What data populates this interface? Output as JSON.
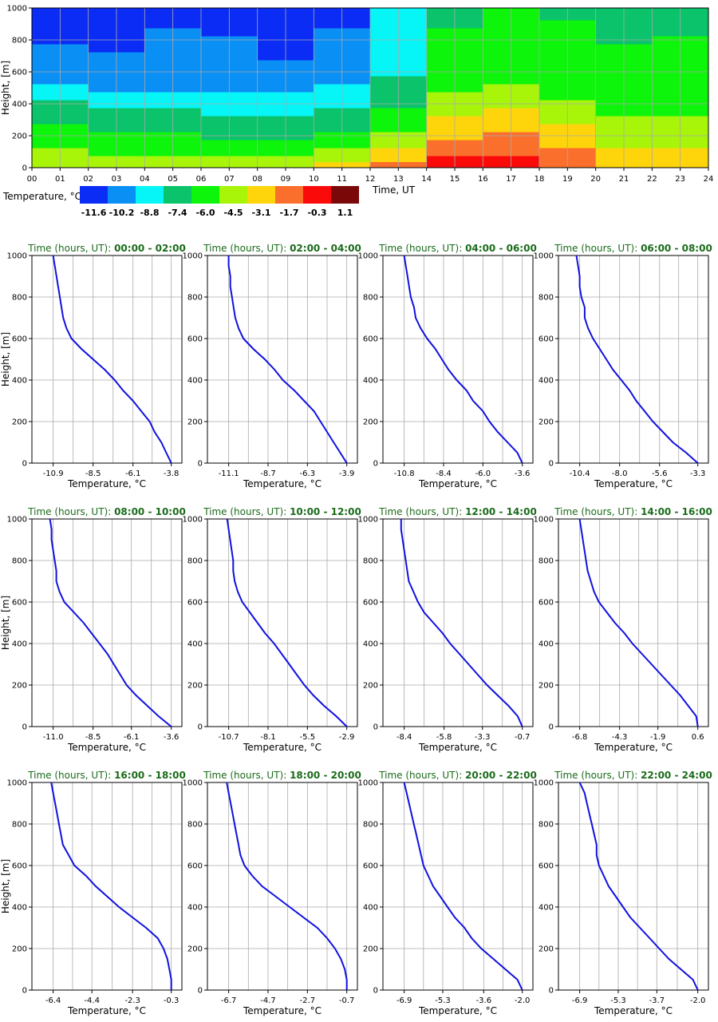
{
  "colors": {
    "bins": [
      "#0b2cf5",
      "#0a8ff5",
      "#06f5f7",
      "#0ac36a",
      "#0cf50a",
      "#a8f50a",
      "#fdd50a",
      "#fb6f2c",
      "#fb0a0a",
      "#7a0808"
    ],
    "profile_line": "#1010e0",
    "title_green": "#1a6b1a"
  },
  "heatmap": {
    "ylabel": "Height, [m]",
    "xlabel": "Time, UT",
    "xlim": [
      0,
      24
    ],
    "ylim": [
      0,
      1000
    ],
    "x_ticks": [
      "00",
      "01",
      "02",
      "03",
      "04",
      "05",
      "06",
      "07",
      "08",
      "09",
      "10",
      "11",
      "12",
      "13",
      "14",
      "15",
      "16",
      "17",
      "18",
      "19",
      "20",
      "21",
      "22",
      "23",
      "24"
    ],
    "y_ticks": [
      "0",
      "200",
      "400",
      "600",
      "800",
      "1000"
    ],
    "colorbar_label": "Temperature, °C",
    "colorbar_ticks": [
      "-11.6",
      "-10.2",
      "-8.8",
      "-7.4",
      "-6.0",
      "-4.5",
      "-3.1",
      "-1.7",
      "-0.3",
      "1.1"
    ],
    "levels_m": [
      25,
      50,
      100,
      150,
      200,
      250,
      300,
      350,
      400,
      450,
      500,
      550,
      600,
      650,
      700,
      750,
      800,
      850,
      900,
      950,
      1000
    ],
    "time_ut": [
      1,
      3,
      5,
      7,
      9,
      11,
      13,
      15,
      17,
      19,
      21,
      23
    ]
  },
  "chart_data": {
    "type": "line",
    "y_label": "Height, [m]",
    "x_label": "Temperature, °C",
    "ylim": [
      0,
      1000
    ],
    "y_ticks": [
      "0",
      "200",
      "400",
      "600",
      "800",
      "1000"
    ],
    "heights": [
      0,
      50,
      100,
      150,
      200,
      250,
      300,
      350,
      400,
      450,
      500,
      550,
      600,
      650,
      700,
      750,
      800,
      850,
      900,
      950,
      1000
    ],
    "panels": [
      {
        "title_prefix": "Time (hours, UT): ",
        "title_range": "00:00 - 02:00",
        "x_ticks": [
          "-10.9",
          "-8.5",
          "-6.1",
          "-3.8"
        ],
        "temps": [
          -3.8,
          -4.1,
          -4.4,
          -4.8,
          -5.1,
          -5.6,
          -6.1,
          -6.7,
          -7.2,
          -7.8,
          -8.5,
          -9.2,
          -9.8,
          -10.1,
          -10.3,
          -10.4,
          -10.5,
          -10.6,
          -10.7,
          -10.8,
          -10.9
        ]
      },
      {
        "title_prefix": "Time (hours, UT): ",
        "title_range": "02:00 - 04:00",
        "x_ticks": [
          "-11.1",
          "-8.7",
          "-6.3",
          "-3.9"
        ],
        "temps": [
          -3.9,
          -4.3,
          -4.7,
          -5.1,
          -5.5,
          -5.9,
          -6.5,
          -7.1,
          -7.8,
          -8.3,
          -8.9,
          -9.6,
          -10.2,
          -10.5,
          -10.7,
          -10.8,
          -10.9,
          -11.0,
          -11.0,
          -11.1,
          -11.1
        ]
      },
      {
        "title_prefix": "Time (hours, UT): ",
        "title_range": "04:00 - 06:00",
        "x_ticks": [
          "-10.8",
          "-8.4",
          "-6.0",
          "-3.6"
        ],
        "temps": [
          -3.6,
          -3.9,
          -4.5,
          -5.1,
          -5.6,
          -6.0,
          -6.6,
          -7.0,
          -7.6,
          -8.1,
          -8.5,
          -8.9,
          -9.4,
          -9.8,
          -10.1,
          -10.2,
          -10.4,
          -10.5,
          -10.6,
          -10.7,
          -10.8
        ]
      },
      {
        "title_prefix": "Time (hours, UT): ",
        "title_range": "06:00 - 08:00",
        "x_ticks": [
          "-10.4",
          "-8.0",
          "-5.6",
          "-3.3"
        ],
        "temps": [
          -3.3,
          -4.0,
          -4.8,
          -5.4,
          -6.0,
          -6.5,
          -7.0,
          -7.4,
          -7.9,
          -8.4,
          -8.8,
          -9.2,
          -9.6,
          -9.9,
          -10.1,
          -10.1,
          -10.3,
          -10.4,
          -10.4,
          -10.5,
          -10.6
        ]
      },
      {
        "title_prefix": "Time (hours, UT): ",
        "title_range": "08:00 - 10:00",
        "x_ticks": [
          "-11.0",
          "-8.5",
          "-6.1",
          "-3.6"
        ],
        "temps": [
          -3.6,
          -4.4,
          -5.1,
          -5.8,
          -6.4,
          -6.8,
          -7.2,
          -7.6,
          -8.1,
          -8.6,
          -9.1,
          -9.7,
          -10.3,
          -10.6,
          -10.8,
          -10.8,
          -10.9,
          -11.0,
          -11.1,
          -11.1,
          -11.2
        ]
      },
      {
        "title_prefix": "Time (hours, UT): ",
        "title_range": "10:00 - 12:00",
        "x_ticks": [
          "-10.7",
          "-8.1",
          "-5.5",
          "-2.9"
        ],
        "temps": [
          -2.9,
          -3.6,
          -4.4,
          -5.1,
          -5.7,
          -6.2,
          -6.7,
          -7.2,
          -7.7,
          -8.3,
          -8.8,
          -9.3,
          -9.8,
          -10.1,
          -10.3,
          -10.4,
          -10.4,
          -10.5,
          -10.6,
          -10.7,
          -10.8
        ]
      },
      {
        "title_prefix": "Time (hours, UT): ",
        "title_range": "12:00 - 14:00",
        "x_ticks": [
          "-8.4",
          "-5.8",
          "-3.3",
          "-0.7"
        ],
        "temps": [
          -0.7,
          -1.0,
          -1.6,
          -2.3,
          -3.0,
          -3.6,
          -4.2,
          -4.8,
          -5.4,
          -5.9,
          -6.5,
          -7.1,
          -7.5,
          -7.8,
          -8.1,
          -8.2,
          -8.3,
          -8.4,
          -8.5,
          -8.6,
          -8.6
        ]
      },
      {
        "title_prefix": "Time (hours, UT): ",
        "title_range": "14:00 - 16:00",
        "x_ticks": [
          "-6.8",
          "-4.3",
          "-1.9",
          "0.6"
        ],
        "temps": [
          0.6,
          0.5,
          0.0,
          -0.5,
          -1.1,
          -1.7,
          -2.3,
          -2.9,
          -3.5,
          -4.0,
          -4.6,
          -5.1,
          -5.6,
          -5.9,
          -6.1,
          -6.3,
          -6.4,
          -6.5,
          -6.6,
          -6.7,
          -6.8
        ]
      },
      {
        "title_prefix": "Time (hours, UT): ",
        "title_range": "16:00 - 18:00",
        "x_ticks": [
          "-6.4",
          "-4.4",
          "-2.3",
          "-0.3"
        ],
        "temps": [
          -0.3,
          -0.3,
          -0.4,
          -0.5,
          -0.7,
          -1.0,
          -1.6,
          -2.3,
          -3.0,
          -3.6,
          -4.2,
          -4.7,
          -5.3,
          -5.6,
          -5.9,
          -6.0,
          -6.1,
          -6.2,
          -6.3,
          -6.4,
          -6.5
        ]
      },
      {
        "title_prefix": "Time (hours, UT): ",
        "title_range": "18:00 - 20:00",
        "x_ticks": [
          "-6.7",
          "-4.7",
          "-2.7",
          "-0.7"
        ],
        "temps": [
          -0.7,
          -0.7,
          -0.8,
          -1.0,
          -1.3,
          -1.7,
          -2.2,
          -2.9,
          -3.6,
          -4.3,
          -5.0,
          -5.5,
          -5.9,
          -6.1,
          -6.2,
          -6.3,
          -6.4,
          -6.5,
          -6.6,
          -6.7,
          -6.8
        ]
      },
      {
        "title_prefix": "Time (hours, UT): ",
        "title_range": "20:00 - 22:00",
        "x_ticks": [
          "-6.9",
          "-5.3",
          "-3.6",
          "-2.0"
        ],
        "temps": [
          -2.0,
          -2.2,
          -2.7,
          -3.2,
          -3.7,
          -4.1,
          -4.4,
          -4.8,
          -5.1,
          -5.4,
          -5.7,
          -5.9,
          -6.1,
          -6.2,
          -6.3,
          -6.4,
          -6.5,
          -6.6,
          -6.7,
          -6.8,
          -6.9
        ]
      },
      {
        "title_prefix": "Time (hours, UT): ",
        "title_range": "22:00 - 24:00",
        "x_ticks": [
          "-6.9",
          "-5.3",
          "-3.7",
          "-2.0"
        ],
        "temps": [
          -2.0,
          -2.2,
          -2.7,
          -3.2,
          -3.6,
          -4.0,
          -4.4,
          -4.8,
          -5.1,
          -5.4,
          -5.7,
          -5.9,
          -6.1,
          -6.2,
          -6.2,
          -6.3,
          -6.4,
          -6.5,
          -6.6,
          -6.7,
          -6.9
        ]
      }
    ],
    "heatmap_temps": [
      [
        -4.4,
        -4.6,
        -4.4,
        -4.3,
        -4.1,
        -3.8,
        -1.7,
        -0.4,
        -0.4,
        -1.2,
        -2.5,
        -3.1
      ],
      [
        -4.8,
        -5.0,
        -4.8,
        -5.1,
        -4.6,
        -4.2,
        -2.6,
        -0.9,
        -0.6,
        -1.4,
        -3.0,
        -3.3
      ],
      [
        -5.1,
        -5.4,
        -5.4,
        -5.8,
        -5.5,
        -5.0,
        -3.5,
        -1.5,
        -1.2,
        -2.0,
        -3.5,
        -3.7
      ],
      [
        -5.5,
        -5.8,
        -6.0,
        -6.4,
        -6.2,
        -5.6,
        -4.2,
        -2.1,
        -1.7,
        -2.6,
        -4.0,
        -4.1
      ],
      [
        -5.9,
        -6.2,
        -6.5,
        -7.0,
        -6.8,
        -6.2,
        -4.8,
        -2.7,
        -2.2,
        -3.1,
        -4.4,
        -4.4
      ],
      [
        -6.4,
        -6.8,
        -7.1,
        -7.5,
        -7.3,
        -6.8,
        -5.3,
        -3.2,
        -2.6,
        -3.6,
        -4.8,
        -4.8
      ],
      [
        -7.0,
        -7.4,
        -7.6,
        -8.0,
        -7.8,
        -7.3,
        -5.8,
        -3.6,
        -3.1,
        -4.0,
        -5.1,
        -5.1
      ],
      [
        -7.5,
        -8.0,
        -8.1,
        -8.5,
        -8.3,
        -7.9,
        -6.3,
        -4.1,
        -3.6,
        -4.4,
        -5.3,
        -5.4
      ],
      [
        -8.1,
        -8.6,
        -8.6,
        -9.0,
        -8.8,
        -8.4,
        -6.8,
        -4.6,
        -4.1,
        -4.9,
        -5.6,
        -5.6
      ],
      [
        -8.7,
        -9.1,
        -9.1,
        -9.4,
        -9.3,
        -8.9,
        -7.2,
        -5.0,
        -4.6,
        -5.3,
        -5.8,
        -5.8
      ],
      [
        -9.4,
        -9.6,
        -9.6,
        -9.7,
        -9.7,
        -9.3,
        -7.6,
        -5.4,
        -5.0,
        -5.6,
        -6.0,
        -6.0
      ],
      [
        -10.0,
        -10.1,
        -10.0,
        -10.0,
        -10.1,
        -9.7,
        -7.9,
        -5.8,
        -5.4,
        -5.9,
        -6.2,
        -6.2
      ],
      [
        -10.3,
        -10.4,
        -10.3,
        -10.3,
        -10.5,
        -10.0,
        -8.2,
        -6.0,
        -5.7,
        -6.1,
        -6.4,
        -6.3
      ],
      [
        -10.5,
        -10.6,
        -10.5,
        -10.5,
        -10.7,
        -10.3,
        -8.4,
        -6.2,
        -5.9,
        -6.2,
        -6.5,
        -6.4
      ],
      [
        -10.7,
        -10.8,
        -10.6,
        -10.6,
        -10.9,
        -10.5,
        -8.6,
        -6.4,
        -6.1,
        -6.3,
        -6.6,
        -6.5
      ],
      [
        -10.8,
        -10.9,
        -10.7,
        -10.7,
        -11.0,
        -10.6,
        -8.7,
        -6.5,
        -6.2,
        -6.4,
        -6.7,
        -6.6
      ],
      [
        -10.9,
        -11.0,
        -10.8,
        -10.8,
        -11.1,
        -10.7,
        -8.8,
        -6.6,
        -6.3,
        -6.5,
        -6.8,
        -6.7
      ],
      [
        -11.0,
        -11.0,
        -10.8,
        -10.9,
        -11.2,
        -10.8,
        -8.9,
        -6.7,
        -6.4,
        -6.6,
        -6.8,
        -6.8
      ],
      [
        -11.0,
        -11.1,
        -10.9,
        -10.9,
        -11.2,
        -10.9,
        -9.0,
        -6.8,
        -6.5,
        -6.7,
        -6.9,
        -6.8
      ],
      [
        -11.1,
        -11.1,
        -10.9,
        -11.0,
        -11.3,
        -11.0,
        -9.0,
        -6.9,
        -6.6,
        -6.8,
        -6.9,
        -6.9
      ],
      [
        -11.1,
        -11.2,
        -11.0,
        -11.0,
        -11.3,
        -11.0,
        -9.1,
        -7.0,
        -6.7,
        -6.8,
        -7.0,
        -6.9
      ]
    ]
  }
}
